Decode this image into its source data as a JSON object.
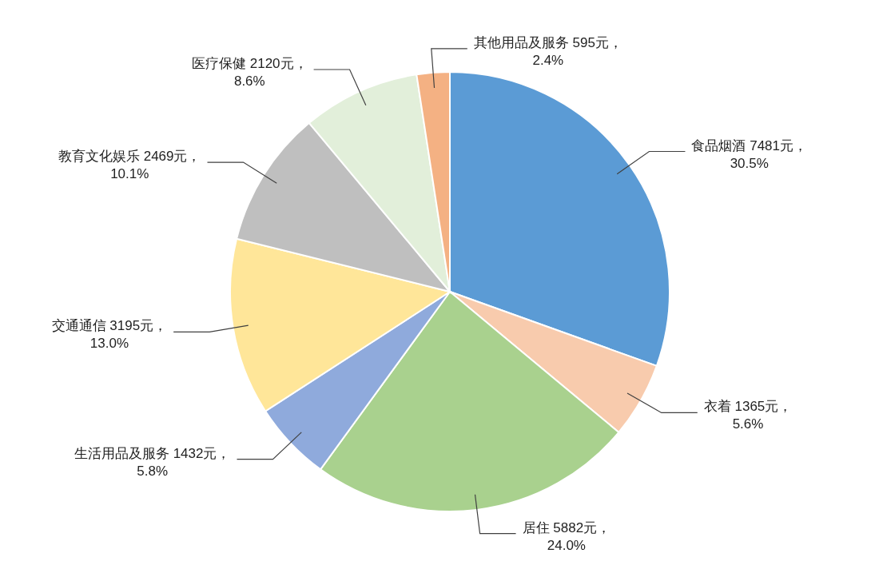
{
  "chart_data": {
    "type": "pie",
    "categories": [
      "食品烟酒",
      "衣着",
      "居住",
      "生活用品及服务",
      "交通通信",
      "教育文化娱乐",
      "医疗保健",
      "其他用品及服务"
    ],
    "values": [
      7481,
      1365,
      5882,
      1432,
      3195,
      2469,
      2120,
      595
    ],
    "colors": [
      "#5b9bd5",
      "#f8cbad",
      "#a9d18e",
      "#8faadc",
      "#ffe699",
      "#bfbfbf",
      "#e2efda",
      "#f4b183"
    ],
    "value_labels": [
      "7481元，30.5%",
      "1365元，5.6%",
      "5882元，24.0%",
      "1432元，5.8%",
      "3195元，13.0%",
      "2469元，10.1%",
      "2120元，8.6%",
      "595元，2.4%"
    ]
  }
}
